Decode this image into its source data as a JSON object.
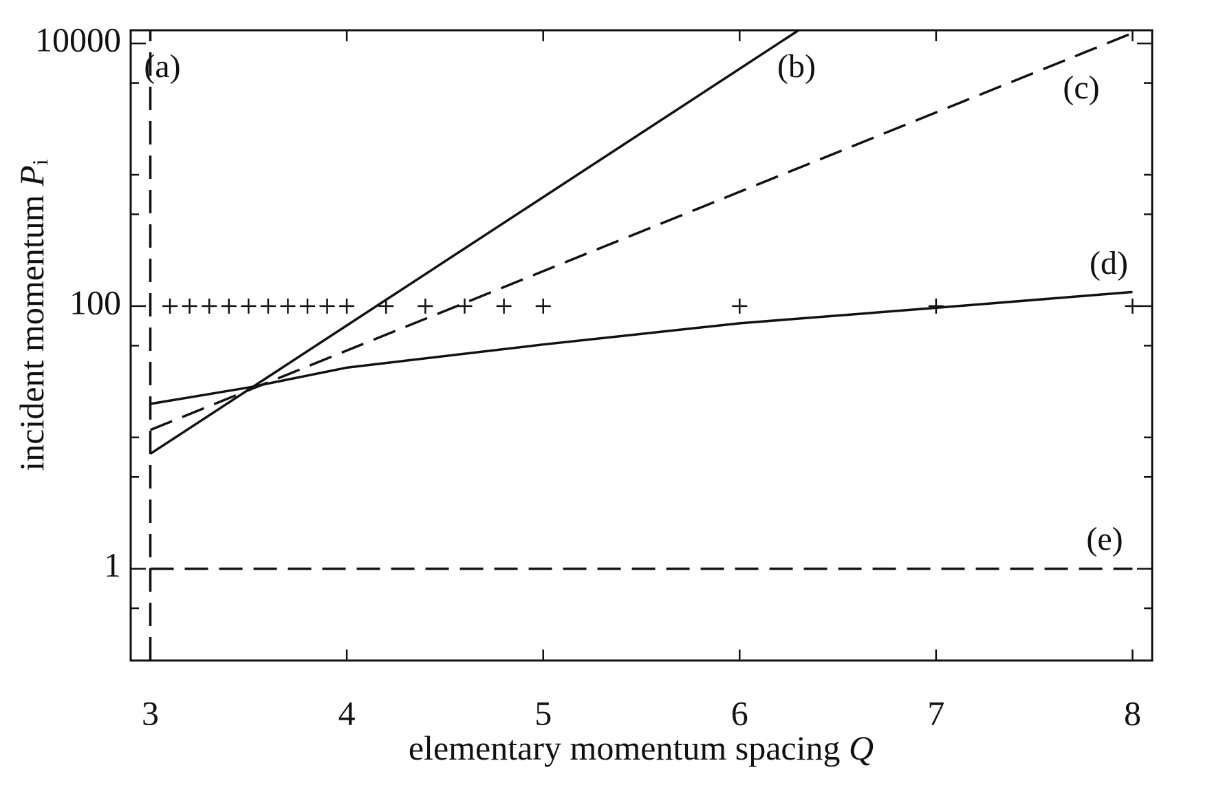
{
  "chart_data": {
    "type": "line",
    "xlabel": "elementary momentum spacing",
    "xlabel_symbol": "Q",
    "ylabel": "incident momentum",
    "ylabel_symbol": "P",
    "ylabel_subscript": "i",
    "log_y": true,
    "xlim": [
      2.9,
      8.1
    ],
    "ylim": [
      0.2,
      12600
    ],
    "xticks": [
      3,
      4,
      5,
      6,
      7,
      8
    ],
    "yticks": [
      1,
      100,
      10000
    ],
    "yminor_ticks": [
      0.5,
      5,
      10,
      50,
      500,
      1000,
      5000
    ],
    "series": [
      {
        "style": "dashed",
        "color": "#111111",
        "x": [
          3,
          3
        ],
        "values": [
          0.2,
          12600
        ]
      },
      {
        "style": "solid",
        "color": "#111111",
        "x": [
          3,
          6.3
        ],
        "values": [
          7.5,
          12600
        ]
      },
      {
        "style": "dashed",
        "color": "#111111",
        "x": [
          3,
          8
        ],
        "values": [
          11.4,
          12000
        ]
      },
      {
        "style": "solid",
        "color": "#111111",
        "x": [
          3,
          3.5,
          4,
          5,
          6,
          7,
          8
        ],
        "values": [
          18,
          24,
          34,
          51,
          74,
          97,
          128
        ]
      },
      {
        "style": "dashed",
        "color": "#111111",
        "x": [
          3,
          8
        ],
        "values": [
          1,
          1
        ]
      },
      {
        "style": "markers",
        "color": "#111111",
        "x": [
          3.1,
          3.2,
          3.3,
          3.4,
          3.5,
          3.6,
          3.7,
          3.8,
          3.9,
          4.0,
          4.2,
          4.4,
          4.6,
          4.8,
          5,
          6,
          7,
          8
        ],
        "values": [
          100,
          100,
          100,
          100,
          100,
          100,
          100,
          100,
          100,
          100,
          100,
          100,
          100,
          100,
          100,
          100,
          100,
          100
        ]
      }
    ],
    "annotations": [
      "(a)",
      "(b)",
      "(c)",
      "(d)",
      "(e)"
    ]
  }
}
